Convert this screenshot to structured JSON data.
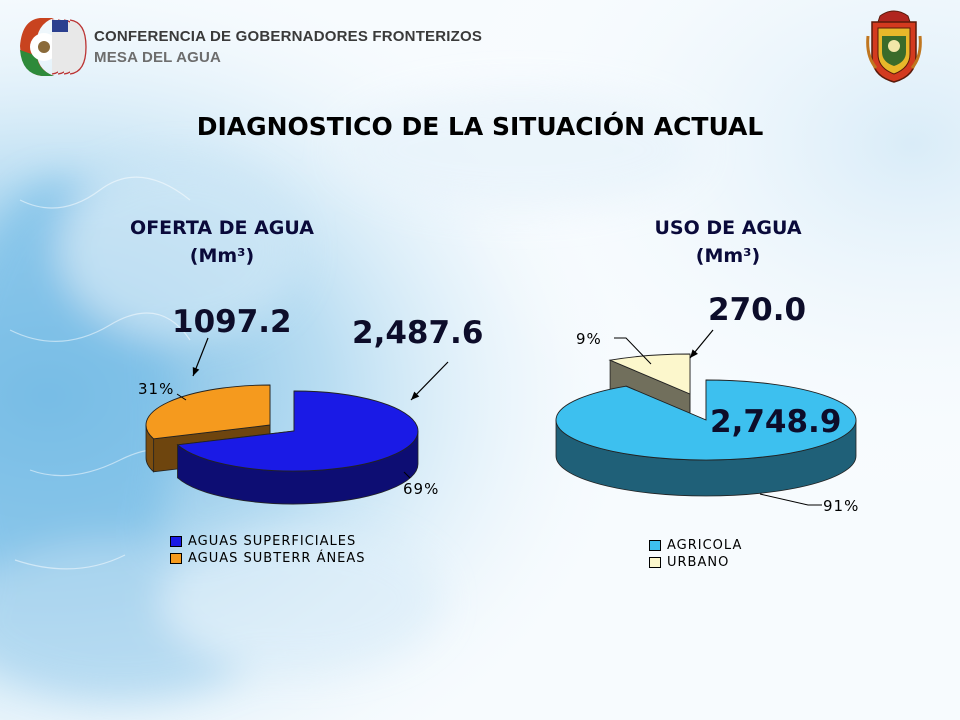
{
  "header": {
    "org_line1": "CONFERENCIA DE GOBERNADORES FRONTERIZOS",
    "org_line2": "MESA DEL AGUA"
  },
  "title": "DIAGNOSTICO DE LA SITUACIÓN ACTUAL",
  "colors": {
    "superficiales": "#1a1ae6",
    "subterraneas": "#f59a1e",
    "agricola": "#3dc0ef",
    "urbano": "#fcf7cc"
  },
  "chart_data": [
    {
      "type": "pie",
      "title_line1": "OFERTA DE AGUA",
      "title_line2": "(Mm³)",
      "slices": [
        {
          "name": "AGUAS SUPERFICIALES",
          "value": 2487.6,
          "value_label": "2,487.6",
          "percent_label": "69%"
        },
        {
          "name": "AGUAS SUBTERRÁNEAS",
          "value": 1097.2,
          "value_label": "1097.2",
          "percent_label": "31%"
        }
      ],
      "legend": [
        "AGUAS SUPERFICIALES",
        "AGUAS SUBTERR ÁNEAS"
      ],
      "legend_position": "bottom"
    },
    {
      "type": "pie",
      "title_line1": "USO DE AGUA",
      "title_line2": "(Mm³)",
      "slices": [
        {
          "name": "AGRICOLA",
          "value": 2748.9,
          "value_label": "2,748.9",
          "percent_label": "91%"
        },
        {
          "name": "URBANO",
          "value": 270.0,
          "value_label": "270.0",
          "percent_label": "9%"
        }
      ],
      "legend": [
        "AGRICOLA",
        "URBANO"
      ],
      "legend_position": "bottom"
    }
  ]
}
